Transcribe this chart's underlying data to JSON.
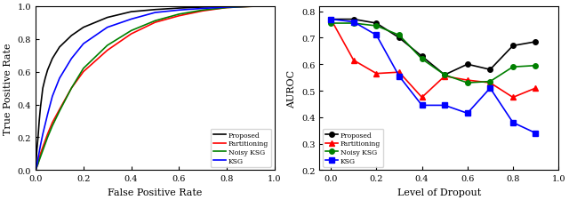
{
  "roc": {
    "proposed": {
      "color": "black",
      "label": "Proposed",
      "x": [
        0.0,
        0.005,
        0.01,
        0.015,
        0.02,
        0.03,
        0.04,
        0.05,
        0.07,
        0.1,
        0.15,
        0.2,
        0.3,
        0.4,
        0.5,
        0.6,
        0.7,
        0.8,
        0.9,
        1.0
      ],
      "y": [
        0.0,
        0.12,
        0.2,
        0.3,
        0.38,
        0.5,
        0.56,
        0.61,
        0.68,
        0.75,
        0.82,
        0.87,
        0.93,
        0.965,
        0.978,
        0.987,
        0.993,
        0.997,
        0.999,
        1.0
      ]
    },
    "partitioning": {
      "color": "red",
      "label": "Partitioning",
      "x": [
        0.0,
        0.005,
        0.01,
        0.015,
        0.02,
        0.03,
        0.04,
        0.05,
        0.07,
        0.1,
        0.15,
        0.2,
        0.3,
        0.4,
        0.5,
        0.6,
        0.7,
        0.8,
        0.9,
        1.0
      ],
      "y": [
        0.0,
        0.02,
        0.04,
        0.07,
        0.1,
        0.14,
        0.18,
        0.22,
        0.29,
        0.37,
        0.5,
        0.6,
        0.73,
        0.83,
        0.9,
        0.94,
        0.97,
        0.99,
        0.997,
        1.0
      ]
    },
    "noisy_ksg": {
      "color": "green",
      "label": "Noisy KSG",
      "x": [
        0.0,
        0.005,
        0.01,
        0.015,
        0.02,
        0.03,
        0.04,
        0.05,
        0.07,
        0.1,
        0.15,
        0.2,
        0.3,
        0.4,
        0.5,
        0.6,
        0.7,
        0.8,
        0.9,
        1.0
      ],
      "y": [
        0.0,
        0.02,
        0.04,
        0.06,
        0.08,
        0.12,
        0.16,
        0.2,
        0.27,
        0.36,
        0.5,
        0.62,
        0.76,
        0.85,
        0.91,
        0.95,
        0.975,
        0.99,
        0.997,
        1.0
      ]
    },
    "ksg": {
      "color": "blue",
      "label": "KSG",
      "x": [
        0.0,
        0.005,
        0.01,
        0.015,
        0.02,
        0.03,
        0.04,
        0.05,
        0.07,
        0.1,
        0.15,
        0.2,
        0.3,
        0.4,
        0.5,
        0.6,
        0.7,
        0.8,
        0.9,
        1.0
      ],
      "y": [
        0.0,
        0.03,
        0.07,
        0.11,
        0.15,
        0.22,
        0.28,
        0.34,
        0.45,
        0.56,
        0.68,
        0.77,
        0.87,
        0.92,
        0.96,
        0.975,
        0.985,
        0.993,
        0.998,
        1.0
      ]
    }
  },
  "auroc": {
    "x": [
      0.0,
      0.1,
      0.2,
      0.3,
      0.4,
      0.5,
      0.6,
      0.7,
      0.8,
      0.9
    ],
    "proposed": {
      "color": "black",
      "label": "Proposed",
      "marker": "o",
      "y": [
        0.77,
        0.77,
        0.755,
        0.7,
        0.63,
        0.56,
        0.6,
        0.58,
        0.67,
        0.685
      ]
    },
    "partitioning": {
      "color": "red",
      "label": "Partitioning",
      "marker": "^",
      "y": [
        0.77,
        0.615,
        0.565,
        0.57,
        0.475,
        0.555,
        0.54,
        0.53,
        0.475,
        0.51
      ]
    },
    "noisy_ksg": {
      "color": "green",
      "label": "Noisy KSG",
      "marker": "o",
      "y": [
        0.755,
        0.755,
        0.745,
        0.71,
        0.62,
        0.56,
        0.53,
        0.535,
        0.59,
        0.595
      ]
    },
    "ksg": {
      "color": "blue",
      "label": "KSG",
      "marker": "s",
      "y": [
        0.77,
        0.76,
        0.71,
        0.555,
        0.445,
        0.445,
        0.415,
        0.51,
        0.38,
        0.34
      ]
    }
  },
  "roc_xlabel": "False Positive Rate",
  "roc_ylabel": "True Positive Rate",
  "auroc_xlabel": "Level of Dropout",
  "auroc_ylabel": "AUROC",
  "fig_width": 6.4,
  "fig_height": 2.26,
  "dpi": 100
}
